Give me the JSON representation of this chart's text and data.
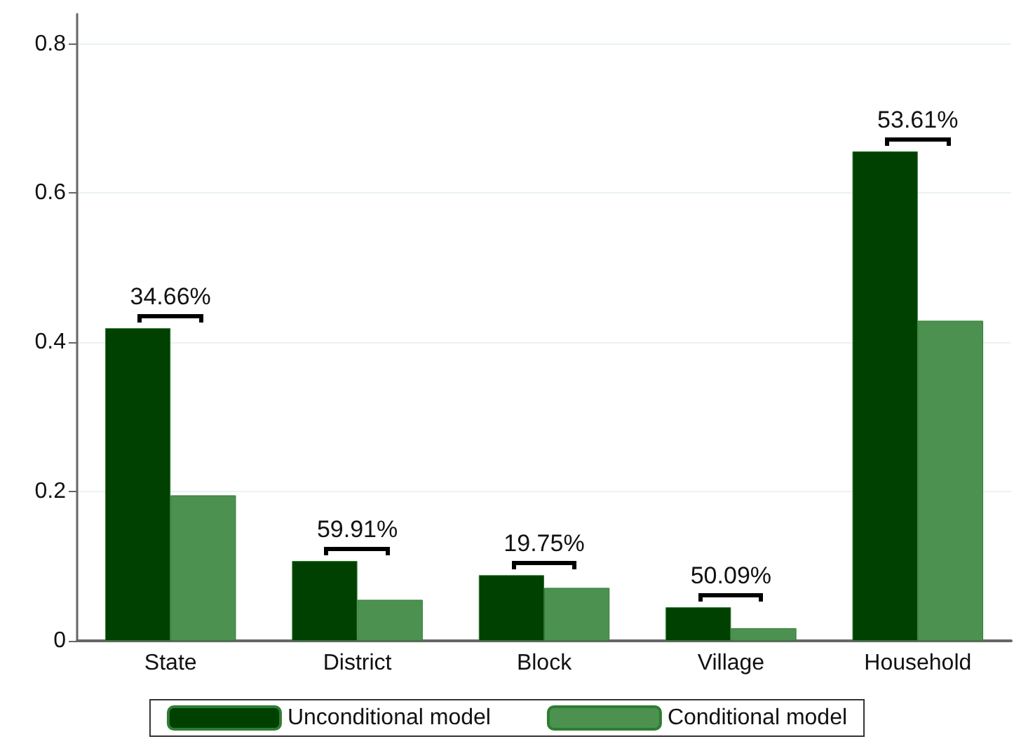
{
  "chart_data": {
    "type": "bar",
    "categories": [
      "State",
      "District",
      "Block",
      "Village",
      "Household"
    ],
    "series": [
      {
        "name": "Unconditional model",
        "color": "#004000",
        "values": [
          0.419,
          0.107,
          0.088,
          0.045,
          0.656
        ]
      },
      {
        "name": "Conditional model",
        "color": "#4c9150",
        "values": [
          0.195,
          0.055,
          0.071,
          0.017,
          0.429
        ]
      }
    ],
    "ylim": [
      0,
      0.84
    ],
    "yticks": [
      0,
      0.2,
      0.4,
      0.6,
      0.8
    ],
    "grid": "y",
    "legend": "bottom",
    "annotations": [
      {
        "text": "34.66%",
        "x": "State",
        "y": 0.419
      },
      {
        "text": "59.91%",
        "x": "District",
        "y": 0.107
      },
      {
        "text": "19.75%",
        "x": "Block",
        "y": 0.088
      },
      {
        "text": "50.09%",
        "x": "Village",
        "y": 0.045
      },
      {
        "text": "53.61%",
        "x": "Household",
        "y": 0.656
      }
    ]
  }
}
